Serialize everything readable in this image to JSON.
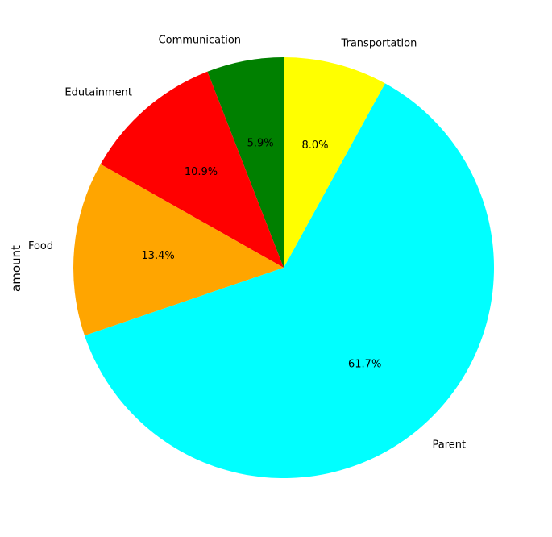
{
  "chart_data": {
    "type": "pie",
    "ylabel": "amount",
    "start_angle_deg": 90,
    "direction": "counterclockwise",
    "autopct_format": "%.1f%%",
    "slices": [
      {
        "label": "Communication",
        "percent": 5.9,
        "pct_text": "5.9%",
        "color": "#008000"
      },
      {
        "label": "Edutainment",
        "percent": 10.9,
        "pct_text": "10.9%",
        "color": "#ff0000"
      },
      {
        "label": "Food",
        "percent": 13.4,
        "pct_text": "13.4%",
        "color": "#ffa500"
      },
      {
        "label": "Parent",
        "percent": 61.7,
        "pct_text": "61.7%",
        "color": "#00ffff"
      },
      {
        "label": "Transportation",
        "percent": 8.0,
        "pct_text": "8.0%",
        "color": "#ffff00"
      }
    ]
  }
}
